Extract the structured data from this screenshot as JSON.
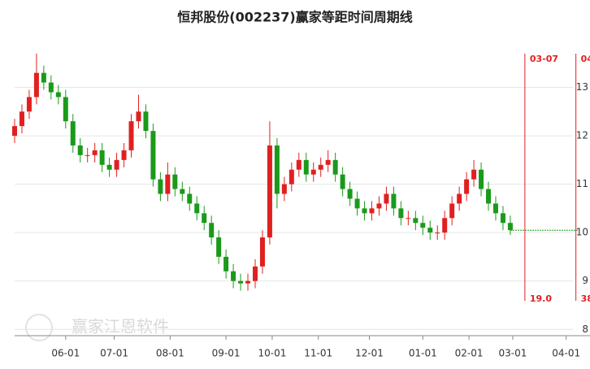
{
  "chart_data": {
    "type": "candlestick",
    "title": "恒邦股份(002237)赢家等距时间周期线",
    "watermark": "赢家江恩软件",
    "x": [
      0,
      3,
      6,
      9,
      12,
      15,
      18,
      21,
      24,
      27,
      30,
      33,
      36,
      39,
      42,
      45,
      48,
      51,
      54,
      57,
      60,
      63,
      66,
      69,
      72,
      75,
      78,
      81,
      84,
      87,
      90,
      93,
      96,
      99,
      102,
      105,
      108,
      111,
      114,
      117,
      120,
      123,
      126,
      129,
      132,
      135,
      138,
      141,
      144,
      147,
      150,
      153,
      156,
      159,
      162,
      165,
      168,
      171,
      174,
      177,
      180,
      183,
      186,
      189,
      192,
      195,
      198,
      201,
      204
    ],
    "open": [
      12.0,
      12.2,
      12.5,
      12.8,
      13.3,
      13.1,
      12.9,
      12.8,
      12.3,
      11.8,
      11.6,
      11.6,
      11.7,
      11.4,
      11.3,
      11.5,
      11.7,
      12.3,
      12.5,
      12.1,
      11.1,
      10.8,
      11.2,
      10.9,
      10.8,
      10.6,
      10.4,
      10.2,
      9.9,
      9.5,
      9.2,
      9.0,
      8.95,
      9.0,
      9.3,
      9.9,
      11.8,
      10.8,
      11.0,
      11.3,
      11.5,
      11.2,
      11.3,
      11.4,
      11.5,
      11.2,
      10.9,
      10.7,
      10.5,
      10.4,
      10.5,
      10.6,
      10.8,
      10.5,
      10.3,
      10.3,
      10.2,
      10.1,
      10.0,
      10.0,
      10.3,
      10.6,
      10.8,
      11.1,
      11.3,
      10.9,
      10.6,
      10.4,
      10.2
    ],
    "high": [
      12.35,
      12.65,
      12.95,
      13.7,
      13.45,
      13.25,
      13.05,
      12.95,
      12.45,
      11.95,
      11.75,
      11.85,
      11.85,
      11.55,
      11.65,
      11.85,
      12.45,
      12.85,
      12.65,
      12.25,
      11.25,
      11.45,
      11.35,
      11.05,
      10.95,
      10.75,
      10.55,
      10.35,
      10.05,
      9.65,
      9.35,
      9.15,
      9.15,
      9.45,
      10.05,
      12.3,
      11.95,
      11.15,
      11.45,
      11.65,
      11.65,
      11.45,
      11.55,
      11.7,
      11.65,
      11.35,
      11.05,
      10.85,
      10.65,
      10.65,
      10.75,
      10.95,
      10.95,
      10.65,
      10.45,
      10.45,
      10.35,
      10.25,
      10.15,
      10.45,
      10.75,
      10.95,
      11.25,
      11.5,
      11.45,
      11.05,
      10.75,
      10.55,
      10.35
    ],
    "low": [
      11.85,
      12.05,
      12.35,
      12.65,
      12.95,
      12.75,
      12.65,
      12.15,
      11.65,
      11.45,
      11.45,
      11.45,
      11.25,
      11.15,
      11.15,
      11.35,
      11.55,
      12.15,
      11.95,
      10.95,
      10.65,
      10.65,
      10.75,
      10.65,
      10.45,
      10.25,
      10.05,
      9.75,
      9.35,
      9.05,
      8.85,
      8.8,
      8.8,
      8.85,
      9.15,
      9.75,
      10.5,
      10.65,
      10.85,
      11.15,
      11.05,
      11.05,
      11.15,
      11.25,
      11.05,
      10.75,
      10.55,
      10.35,
      10.25,
      10.25,
      10.35,
      10.45,
      10.35,
      10.15,
      10.15,
      10.05,
      9.95,
      9.85,
      9.85,
      9.85,
      10.15,
      10.45,
      10.65,
      10.95,
      10.75,
      10.45,
      10.25,
      10.05,
      9.95
    ],
    "close": [
      12.2,
      12.5,
      12.8,
      13.3,
      13.1,
      12.9,
      12.8,
      12.3,
      11.8,
      11.6,
      11.6,
      11.7,
      11.4,
      11.3,
      11.5,
      11.7,
      12.3,
      12.5,
      12.1,
      11.1,
      10.8,
      11.2,
      10.9,
      10.8,
      10.6,
      10.4,
      10.2,
      9.9,
      9.5,
      9.2,
      9.0,
      8.95,
      9.0,
      9.3,
      9.9,
      11.8,
      10.8,
      11.0,
      11.3,
      11.5,
      11.2,
      11.3,
      11.4,
      11.5,
      11.2,
      10.9,
      10.7,
      10.5,
      10.4,
      10.5,
      10.6,
      10.8,
      10.5,
      10.3,
      10.3,
      10.2,
      10.1,
      10.0,
      10.0,
      10.3,
      10.6,
      10.8,
      11.1,
      11.3,
      10.9,
      10.6,
      10.4,
      10.2,
      10.05
    ],
    "up_color": "#e02020",
    "down_color": "#1a9a1a",
    "projection": {
      "x": [
        204,
        232
      ],
      "values": [
        10.05,
        10.05
      ],
      "color": "#1a9a1a"
    },
    "cycle_lines": [
      {
        "x": 210,
        "date": "03-07",
        "label": "19.0"
      },
      {
        "x": 231,
        "date": "04-",
        "label": "38."
      }
    ],
    "cycle_color": "#e02020",
    "xlim": [
      0,
      236
    ],
    "ylim": [
      7.87,
      14.05
    ],
    "xticks": [
      {
        "value": 21,
        "label": "06-01"
      },
      {
        "value": 41,
        "label": "07-01"
      },
      {
        "value": 64,
        "label": "08-01"
      },
      {
        "value": 87,
        "label": "09-01"
      },
      {
        "value": 106,
        "label": "10-01"
      },
      {
        "value": 125,
        "label": "11-01"
      },
      {
        "value": 146,
        "label": "12-01"
      },
      {
        "value": 168,
        "label": "01-01"
      },
      {
        "value": 187,
        "label": "02-01"
      },
      {
        "value": 205,
        "label": "03-01"
      },
      {
        "value": 227,
        "label": "04-01"
      }
    ],
    "yticks": [
      8,
      9,
      10,
      11,
      12,
      13
    ],
    "grid": true
  }
}
